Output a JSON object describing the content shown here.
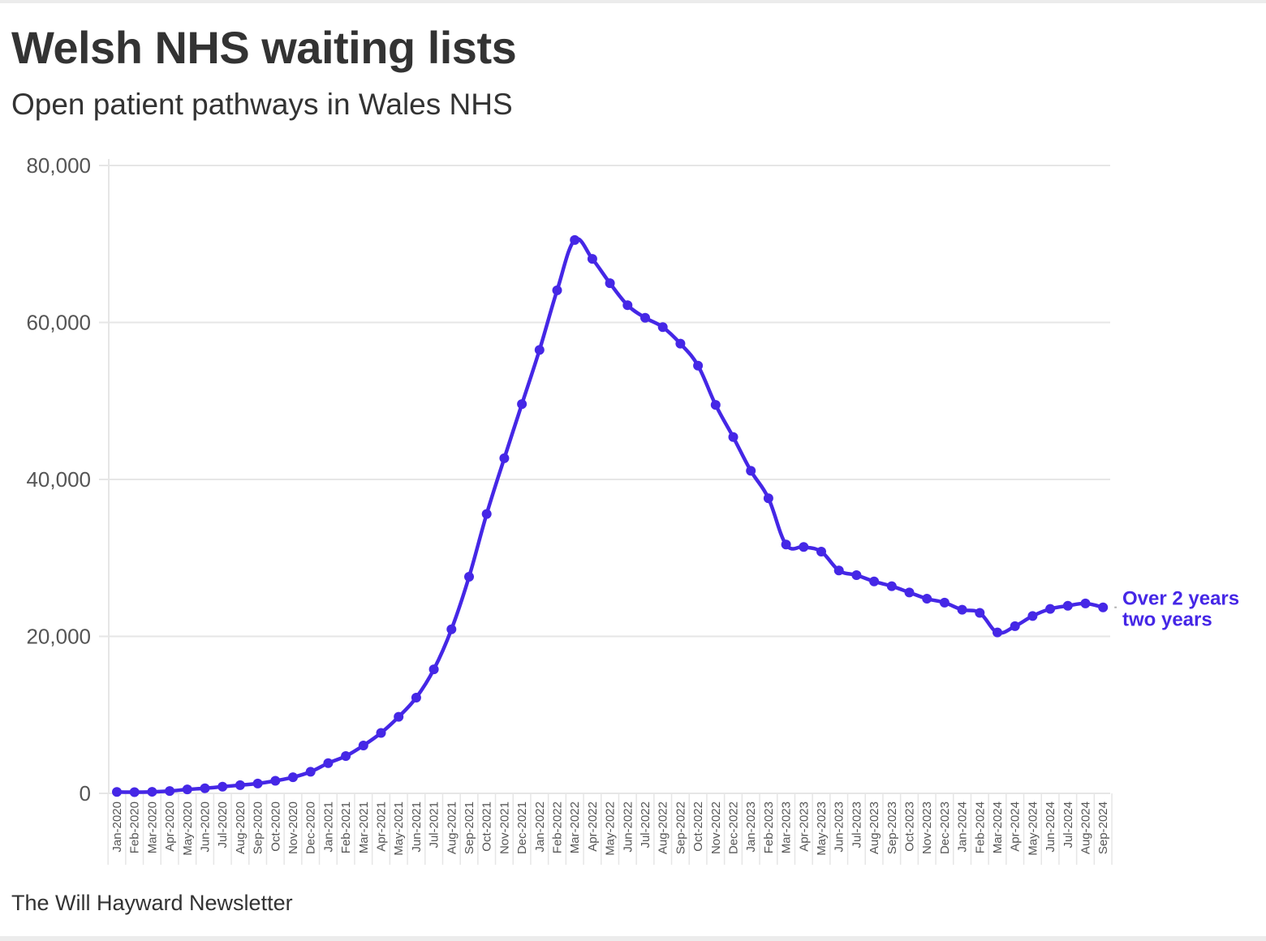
{
  "title": "Welsh NHS waiting lists",
  "subtitle": "Open patient pathways in Wales NHS",
  "footer": "The Will Hayward Newsletter",
  "colors": {
    "series": "#4527e6",
    "grid": "#e6e6e6",
    "text": "#333333",
    "axis_text": "#555555"
  },
  "chart_data": {
    "type": "line",
    "xlabel": "",
    "ylabel": "",
    "ylim": [
      0,
      80000
    ],
    "y_ticks": [
      0,
      20000,
      40000,
      60000,
      80000
    ],
    "y_tick_labels": [
      "0",
      "20,000",
      "40,000",
      "60,000",
      "80,000"
    ],
    "grid": "horizontal",
    "categories": [
      "Jan-2020",
      "Feb-2020",
      "Mar-2020",
      "Apr-2020",
      "May-2020",
      "Jun-2020",
      "Jul-2020",
      "Aug-2020",
      "Sep-2020",
      "Oct-2020",
      "Nov-2020",
      "Dec-2020",
      "Jan-2021",
      "Feb-2021",
      "Mar-2021",
      "Apr-2021",
      "May-2021",
      "Jun-2021",
      "Jul-2021",
      "Aug-2021",
      "Sep-2021",
      "Oct-2021",
      "Nov-2021",
      "Dec-2021",
      "Jan-2022",
      "Feb-2022",
      "Mar-2022",
      "Apr-2022",
      "May-2022",
      "Jun-2022",
      "Jul-2022",
      "Aug-2022",
      "Sep-2022",
      "Oct-2022",
      "Nov-2022",
      "Dec-2022",
      "Jan-2023",
      "Feb-2023",
      "Mar-2023",
      "Apr-2023",
      "May-2023",
      "Jun-2023",
      "Jul-2023",
      "Aug-2023",
      "Sep-2023",
      "Oct-2023",
      "Nov-2023",
      "Dec-2023",
      "Jan-2024",
      "Feb-2024",
      "Mar-2024",
      "Apr-2024",
      "May-2024",
      "Jun-2024",
      "Jul-2024",
      "Aug-2024",
      "Sep-2024"
    ],
    "series": [
      {
        "name": "Over 2 years two years",
        "label_lines": [
          "Over 2 years",
          "two years"
        ],
        "values": [
          180,
          150,
          200,
          300,
          500,
          650,
          850,
          1050,
          1250,
          1600,
          2050,
          2750,
          3850,
          4750,
          6100,
          7700,
          9750,
          12200,
          15800,
          20900,
          27600,
          35600,
          42700,
          49600,
          56500,
          64100,
          70500,
          68100,
          65000,
          62200,
          60600,
          59400,
          57300,
          54500,
          49500,
          45400,
          41100,
          37600,
          31700,
          31400,
          30800,
          28400,
          27800,
          27000,
          26400,
          25600,
          24800,
          24300,
          23400,
          23000,
          20500,
          21300,
          22600,
          23500,
          23900,
          24200,
          23700
        ]
      }
    ]
  }
}
